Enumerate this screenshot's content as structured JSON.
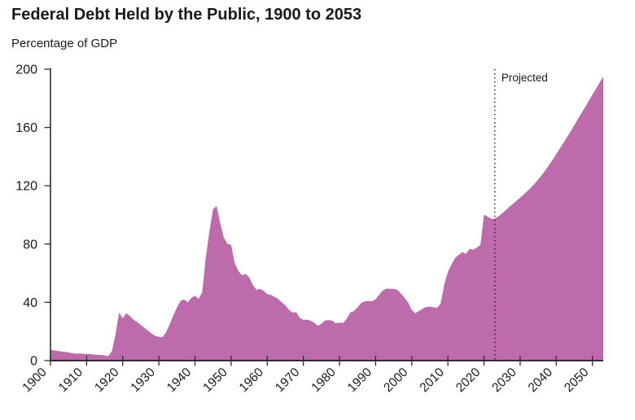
{
  "chart_data": {
    "type": "area",
    "title": "Federal Debt Held by the Public, 1900 to 2053",
    "ylabel": "Percentage of GDP",
    "xlabel": "",
    "ylim": [
      0,
      200
    ],
    "x_range": [
      1900,
      2053
    ],
    "y_ticks": [
      0,
      40,
      80,
      120,
      160,
      200
    ],
    "x_ticks": [
      1900,
      1910,
      1920,
      1930,
      1940,
      1950,
      1960,
      1970,
      1980,
      1990,
      2000,
      2010,
      2020,
      2030,
      2040,
      2050
    ],
    "grid": false,
    "legend": "none",
    "annotation": "Projected",
    "projection_line_year": 2023,
    "area_color": "#BE6BAC",
    "axis_color": "#2e2e2e",
    "series": [
      {
        "name": "Federal debt held by the public (% of GDP)",
        "x": [
          1900,
          1901,
          1902,
          1903,
          1904,
          1905,
          1906,
          1907,
          1908,
          1909,
          1910,
          1911,
          1912,
          1913,
          1914,
          1915,
          1916,
          1917,
          1918,
          1919,
          1920,
          1921,
          1922,
          1923,
          1924,
          1925,
          1926,
          1927,
          1928,
          1929,
          1930,
          1931,
          1932,
          1933,
          1934,
          1935,
          1936,
          1937,
          1938,
          1939,
          1940,
          1941,
          1942,
          1943,
          1944,
          1945,
          1946,
          1947,
          1948,
          1949,
          1950,
          1951,
          1952,
          1953,
          1954,
          1955,
          1956,
          1957,
          1958,
          1959,
          1960,
          1961,
          1962,
          1963,
          1964,
          1965,
          1966,
          1967,
          1968,
          1969,
          1970,
          1971,
          1972,
          1973,
          1974,
          1975,
          1976,
          1977,
          1978,
          1979,
          1980,
          1981,
          1982,
          1983,
          1984,
          1985,
          1986,
          1987,
          1988,
          1989,
          1990,
          1991,
          1992,
          1993,
          1994,
          1995,
          1996,
          1997,
          1998,
          1999,
          2000,
          2001,
          2002,
          2003,
          2004,
          2005,
          2006,
          2007,
          2008,
          2009,
          2010,
          2011,
          2012,
          2013,
          2014,
          2015,
          2016,
          2017,
          2018,
          2019,
          2020,
          2021,
          2022,
          2023,
          2024,
          2025,
          2026,
          2027,
          2028,
          2029,
          2030,
          2031,
          2032,
          2033,
          2034,
          2035,
          2036,
          2037,
          2038,
          2039,
          2040,
          2041,
          2042,
          2043,
          2044,
          2045,
          2046,
          2047,
          2048,
          2049,
          2050,
          2051,
          2052,
          2053
        ],
        "values": [
          7.5,
          7.0,
          6.6,
          6.2,
          6.0,
          5.6,
          5.1,
          4.7,
          4.9,
          4.7,
          4.5,
          4.4,
          4.2,
          3.9,
          3.9,
          3.6,
          3.0,
          6.5,
          18.0,
          33.0,
          29.0,
          32.5,
          30.5,
          28.0,
          26.5,
          24.5,
          22.5,
          20.5,
          18.5,
          17.0,
          16.3,
          16.0,
          19.5,
          25.0,
          31.0,
          36.5,
          41.0,
          42.0,
          40.0,
          43.0,
          44.5,
          42.3,
          47.0,
          71.0,
          89.0,
          104.0,
          106.0,
          94.0,
          84.3,
          80.0,
          79.5,
          67.0,
          61.6,
          58.6,
          59.5,
          57.2,
          52.0,
          48.6,
          49.2,
          47.9,
          45.6,
          45.0,
          43.7,
          42.4,
          40.0,
          37.9,
          34.9,
          32.9,
          33.3,
          29.3,
          28.0,
          28.1,
          27.4,
          26.0,
          23.9,
          25.3,
          27.5,
          27.8,
          27.4,
          25.6,
          26.1,
          25.8,
          28.7,
          33.1,
          34.0,
          36.4,
          39.6,
          40.6,
          41.0,
          40.6,
          42.1,
          45.3,
          48.1,
          49.4,
          49.3,
          49.2,
          48.5,
          46.1,
          43.1,
          39.8,
          34.7,
          32.5,
          34.1,
          35.6,
          36.8,
          36.9,
          36.6,
          36.2,
          39.2,
          52.3,
          60.9,
          65.9,
          70.4,
          72.6,
          74.4,
          73.3,
          76.7,
          76.1,
          77.6,
          79.4,
          100.1,
          98.8,
          97.2,
          97.5,
          99.0,
          101.0,
          103.3,
          105.5,
          107.6,
          109.7,
          111.8,
          114.0,
          116.3,
          118.7,
          121.4,
          124.3,
          127.4,
          130.7,
          134.2,
          137.9,
          141.7,
          145.6,
          149.5,
          153.5,
          157.5,
          161.6,
          165.8,
          170.0,
          174.0,
          178.2,
          182.4,
          186.6,
          190.8,
          195.0
        ]
      }
    ]
  }
}
